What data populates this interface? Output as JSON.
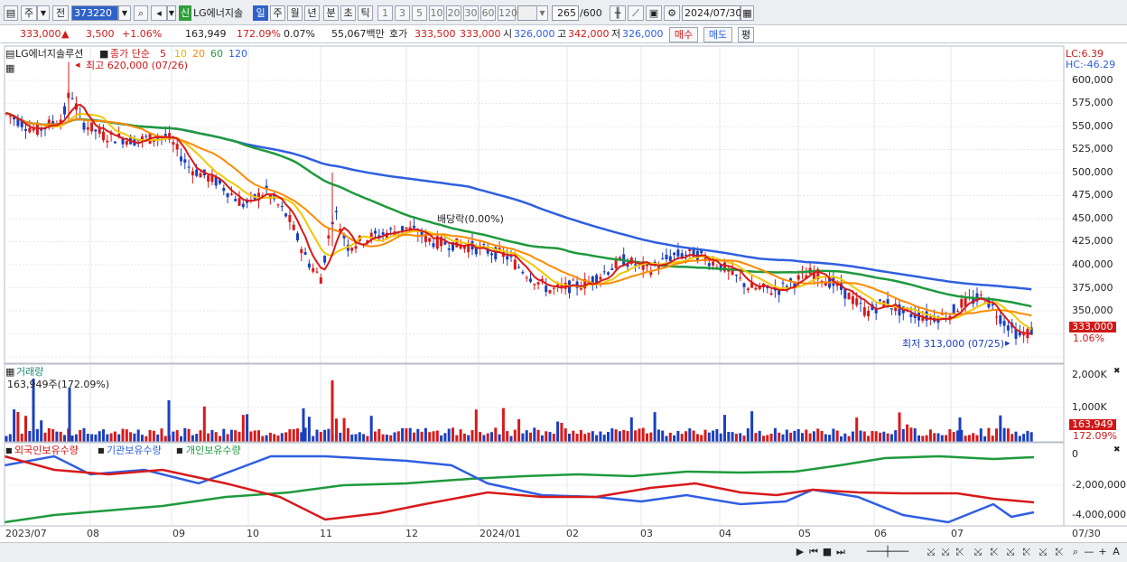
{
  "toolbar": {
    "market": "주",
    "kind": "전",
    "code": "373220",
    "stock_tag": "신",
    "stock_name": "LG에너지솔",
    "periods": [
      "일",
      "주",
      "월",
      "년",
      "분",
      "초",
      "틱"
    ],
    "active_period": "일",
    "nums": [
      "1",
      "3",
      "5",
      "10",
      "20",
      "30",
      "60",
      "120"
    ],
    "count": "265",
    "total": "/600",
    "date": "2024/07/30"
  },
  "info": {
    "price": "333,000",
    "change": "3,500",
    "change_pct": "+1.06%",
    "volume": "163,949",
    "vol_ratio": "172.09%",
    "turnover": "0.07%",
    "amount": "55,067백만",
    "quote_label": "호가",
    "ask": "333,500",
    "bid": "333,000",
    "open_label": "시",
    "open": "326,000",
    "high_label": "고",
    "high": "342,000",
    "low_label": "저",
    "low": "326,000",
    "buy": "매수",
    "sell": "매도",
    "eval": "평"
  },
  "price_panel": {
    "name": "LG에너지솔루션",
    "ma_label": "종가 단순",
    "ma_periods": [
      "5",
      "10",
      "20",
      "60",
      "120"
    ],
    "ma_colors": [
      "#d81a1a",
      "#f2c800",
      "#ff8a00",
      "#1e9a3c",
      "#2f5fe0"
    ],
    "high_note": "최고 620,000 (07/26)",
    "low_note": "최저 313,000 (07/25)",
    "dividend_note": "배당락(0.00%)",
    "lc": "LC:6.39",
    "hc": "HC:-46.29",
    "y_labels": [
      "600,000",
      "575,000",
      "550,000",
      "525,000",
      "500,000",
      "475,000",
      "450,000",
      "425,000",
      "400,000",
      "375,000",
      "350,000"
    ],
    "current_price_box": "333,000",
    "current_pct": "1.06%"
  },
  "volume_panel": {
    "title": "거래량",
    "value_note": "163,949주(172.09%)",
    "y_labels": [
      "2,000K",
      "1,000K"
    ],
    "current_box": "163,949",
    "current_pct": "172.09%"
  },
  "holding_panel": {
    "legends": [
      "외국인보유수량",
      "기관보유수량",
      "개인보유수량"
    ],
    "legend_colors": [
      "#d81a1a",
      "#2f5fe0",
      "#1e9a3c"
    ],
    "y_labels": [
      "0",
      "-2,000,000",
      "-4,000,000"
    ]
  },
  "x_axis": [
    "2023/07",
    "08",
    "09",
    "10",
    "11",
    "12",
    "2024/01",
    "02",
    "03",
    "04",
    "05",
    "06",
    "07"
  ],
  "x_axis_end": "07/30"
}
